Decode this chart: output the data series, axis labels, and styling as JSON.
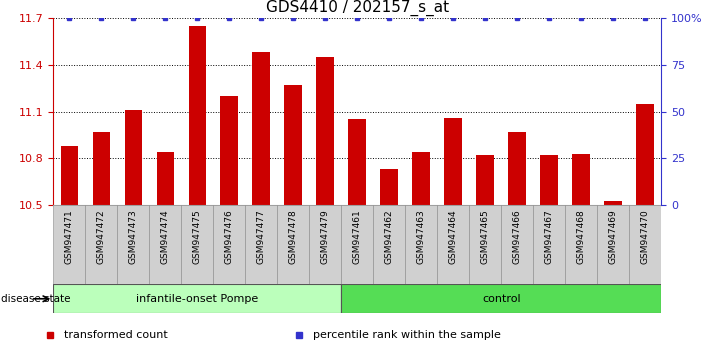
{
  "title": "GDS4410 / 202157_s_at",
  "samples": [
    "GSM947471",
    "GSM947472",
    "GSM947473",
    "GSM947474",
    "GSM947475",
    "GSM947476",
    "GSM947477",
    "GSM947478",
    "GSM947479",
    "GSM947461",
    "GSM947462",
    "GSM947463",
    "GSM947464",
    "GSM947465",
    "GSM947466",
    "GSM947467",
    "GSM947468",
    "GSM947469",
    "GSM947470"
  ],
  "bar_values": [
    10.88,
    10.97,
    11.11,
    10.84,
    11.65,
    11.2,
    11.48,
    11.27,
    11.45,
    11.05,
    10.73,
    10.84,
    11.06,
    10.82,
    10.97,
    10.82,
    10.83,
    10.53,
    11.15
  ],
  "groups": [
    {
      "label": "infantile-onset Pompe",
      "start": 0,
      "end": 9
    },
    {
      "label": "control",
      "start": 9,
      "end": 19
    }
  ],
  "group_colors": [
    "#bbffbb",
    "#55dd55"
  ],
  "bar_color": "#cc0000",
  "percentile_color": "#3333cc",
  "ylim_left": [
    10.5,
    11.7
  ],
  "ylim_right": [
    0,
    100
  ],
  "yticks_left": [
    10.5,
    10.8,
    11.1,
    11.4,
    11.7
  ],
  "yticks_right": [
    0,
    25,
    50,
    75,
    100
  ],
  "grid_color": "black",
  "legend_items": [
    {
      "label": "transformed count",
      "color": "#cc0000"
    },
    {
      "label": "percentile rank within the sample",
      "color": "#3333cc"
    }
  ],
  "title_fontsize": 11,
  "tick_label_fontsize": 6.5,
  "axis_tick_fontsize": 8
}
